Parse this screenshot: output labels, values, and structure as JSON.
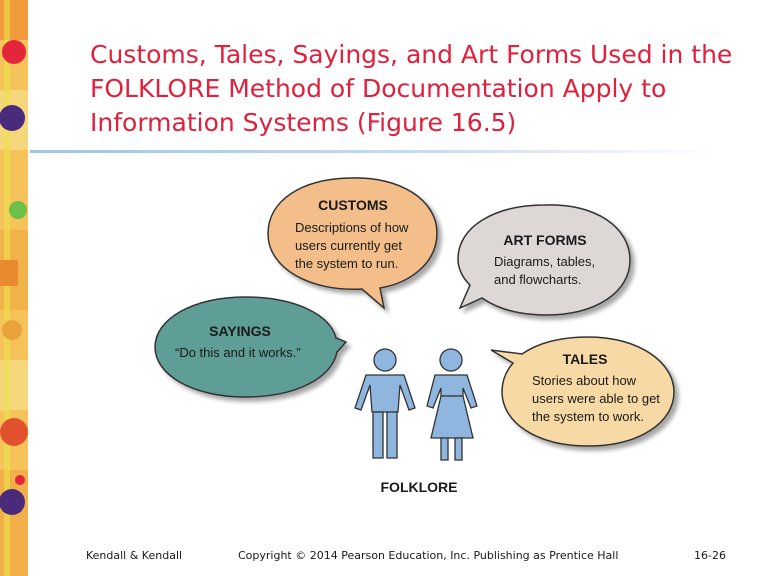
{
  "title_lines": [
    "Customs, Tales, Sayings, and Art Forms Used in the",
    "FOLKLORE Method of Documentation Apply to",
    "Information Systems (Figure 16.5)"
  ],
  "bubbles": {
    "customs": {
      "title": "CUSTOMS",
      "lines": [
        "Descriptions of how",
        "users currently get",
        "the system to run."
      ],
      "color": "#f3be8a"
    },
    "art_forms": {
      "title": "ART FORMS",
      "lines": [
        "Diagrams, tables,",
        "and flowcharts."
      ],
      "color": "#ddd8d6"
    },
    "sayings": {
      "title": "SAYINGS",
      "lines": [
        "“Do this and it works.”"
      ],
      "color": "#5f9e96"
    },
    "tales": {
      "title": "TALES",
      "lines": [
        "Stories about how",
        "users were able to get",
        "the system to work."
      ],
      "color": "#f6d9a4"
    }
  },
  "center_label": "FOLKLORE",
  "figure_color": "#8fb6df",
  "footer": {
    "left": "Kendall & Kendall",
    "center": "Copyright © 2014 Pearson Education, Inc. Publishing as Prentice Hall",
    "right": "16-26"
  }
}
